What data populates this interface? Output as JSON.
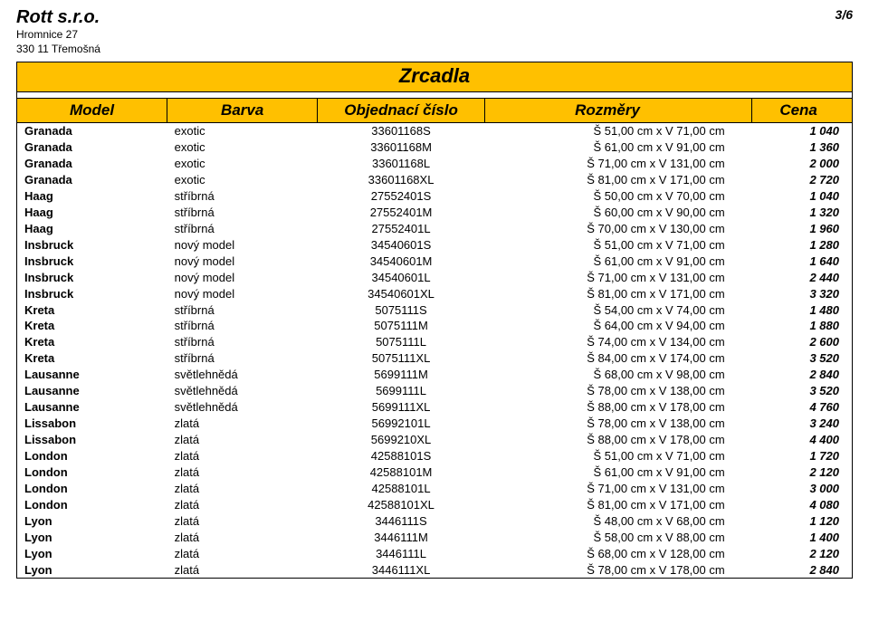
{
  "company": {
    "name": "Rott s.r.o.",
    "addr1": "Hromnice 27",
    "addr2": "330 11 Třemošná"
  },
  "page_number": "3/6",
  "title": "Zrcadla",
  "columns": {
    "model": "Model",
    "barva": "Barva",
    "obj": "Objednací číslo",
    "roz": "Rozměry",
    "cena": "Cena"
  },
  "rows": [
    {
      "model": "Granada",
      "barva": "exotic",
      "obj": "33601168S",
      "roz": "Š 51,00 cm x V 71,00 cm",
      "cena": "1 040"
    },
    {
      "model": "Granada",
      "barva": "exotic",
      "obj": "33601168M",
      "roz": "Š 61,00 cm x V 91,00 cm",
      "cena": "1 360"
    },
    {
      "model": "Granada",
      "barva": "exotic",
      "obj": "33601168L",
      "roz": "Š 71,00 cm x V 131,00 cm",
      "cena": "2 000"
    },
    {
      "model": "Granada",
      "barva": "exotic",
      "obj": "33601168XL",
      "roz": "Š 81,00 cm x V 171,00 cm",
      "cena": "2 720"
    },
    {
      "model": "Haag",
      "barva": "stříbrná",
      "obj": "27552401S",
      "roz": "Š 50,00 cm x V 70,00 cm",
      "cena": "1 040"
    },
    {
      "model": "Haag",
      "barva": "stříbrná",
      "obj": "27552401M",
      "roz": "Š 60,00 cm x V 90,00 cm",
      "cena": "1 320"
    },
    {
      "model": "Haag",
      "barva": "stříbrná",
      "obj": "27552401L",
      "roz": "Š 70,00 cm x V 130,00 cm",
      "cena": "1 960"
    },
    {
      "model": "Insbruck",
      "barva": "nový model",
      "obj": "34540601S",
      "roz": "Š 51,00 cm x V 71,00 cm",
      "cena": "1 280"
    },
    {
      "model": "Insbruck",
      "barva": "nový model",
      "obj": "34540601M",
      "roz": "Š 61,00 cm x V 91,00 cm",
      "cena": "1 640"
    },
    {
      "model": "Insbruck",
      "barva": "nový model",
      "obj": "34540601L",
      "roz": "Š 71,00 cm x V 131,00 cm",
      "cena": "2 440"
    },
    {
      "model": "Insbruck",
      "barva": "nový model",
      "obj": "34540601XL",
      "roz": "Š 81,00 cm x V 171,00 cm",
      "cena": "3 320"
    },
    {
      "model": "Kreta",
      "barva": "stříbrná",
      "obj": "5075111S",
      "roz": "Š 54,00 cm x V 74,00 cm",
      "cena": "1 480"
    },
    {
      "model": "Kreta",
      "barva": "stříbrná",
      "obj": "5075111M",
      "roz": "Š 64,00 cm x V 94,00 cm",
      "cena": "1 880"
    },
    {
      "model": "Kreta",
      "barva": "stříbrná",
      "obj": "5075111L",
      "roz": "Š 74,00 cm x V 134,00 cm",
      "cena": "2 600"
    },
    {
      "model": "Kreta",
      "barva": "stříbrná",
      "obj": "5075111XL",
      "roz": "Š 84,00 cm x V 174,00 cm",
      "cena": "3 520"
    },
    {
      "model": "Lausanne",
      "barva": "světlehnědá",
      "obj": "5699111M",
      "roz": "Š 68,00 cm x V 98,00 cm",
      "cena": "2 840"
    },
    {
      "model": "Lausanne",
      "barva": "světlehnědá",
      "obj": "5699111L",
      "roz": "Š 78,00 cm x V 138,00 cm",
      "cena": "3 520"
    },
    {
      "model": "Lausanne",
      "barva": "světlehnědá",
      "obj": "5699111XL",
      "roz": "Š 88,00 cm x V 178,00 cm",
      "cena": "4 760"
    },
    {
      "model": "Lissabon",
      "barva": "zlatá",
      "obj": "56992101L",
      "roz": "Š 78,00 cm x V 138,00 cm",
      "cena": "3 240"
    },
    {
      "model": "Lissabon",
      "barva": "zlatá",
      "obj": "5699210XL",
      "roz": "Š 88,00 cm x V 178,00 cm",
      "cena": "4 400"
    },
    {
      "model": "London",
      "barva": "zlatá",
      "obj": "42588101S",
      "roz": "Š 51,00 cm x V 71,00 cm",
      "cena": "1 720"
    },
    {
      "model": "London",
      "barva": "zlatá",
      "obj": "42588101M",
      "roz": "Š 61,00 cm x V 91,00 cm",
      "cena": "2 120"
    },
    {
      "model": "London",
      "barva": "zlatá",
      "obj": "42588101L",
      "roz": "Š 71,00 cm x V 131,00 cm",
      "cena": "3 000"
    },
    {
      "model": "London",
      "barva": "zlatá",
      "obj": "42588101XL",
      "roz": "Š 81,00 cm x V 171,00 cm",
      "cena": "4 080"
    },
    {
      "model": "Lyon",
      "barva": "zlatá",
      "obj": "3446111S",
      "roz": "Š 48,00 cm x V 68,00 cm",
      "cena": "1 120"
    },
    {
      "model": "Lyon",
      "barva": "zlatá",
      "obj": "3446111M",
      "roz": "Š 58,00 cm x V 88,00 cm",
      "cena": "1 400"
    },
    {
      "model": "Lyon",
      "barva": "zlatá",
      "obj": "3446111L",
      "roz": "Š 68,00 cm x V 128,00 cm",
      "cena": "2 120"
    },
    {
      "model": "Lyon",
      "barva": "zlatá",
      "obj": "3446111XL",
      "roz": "Š 78,00 cm x V 178,00 cm",
      "cena": "2 840"
    }
  ]
}
